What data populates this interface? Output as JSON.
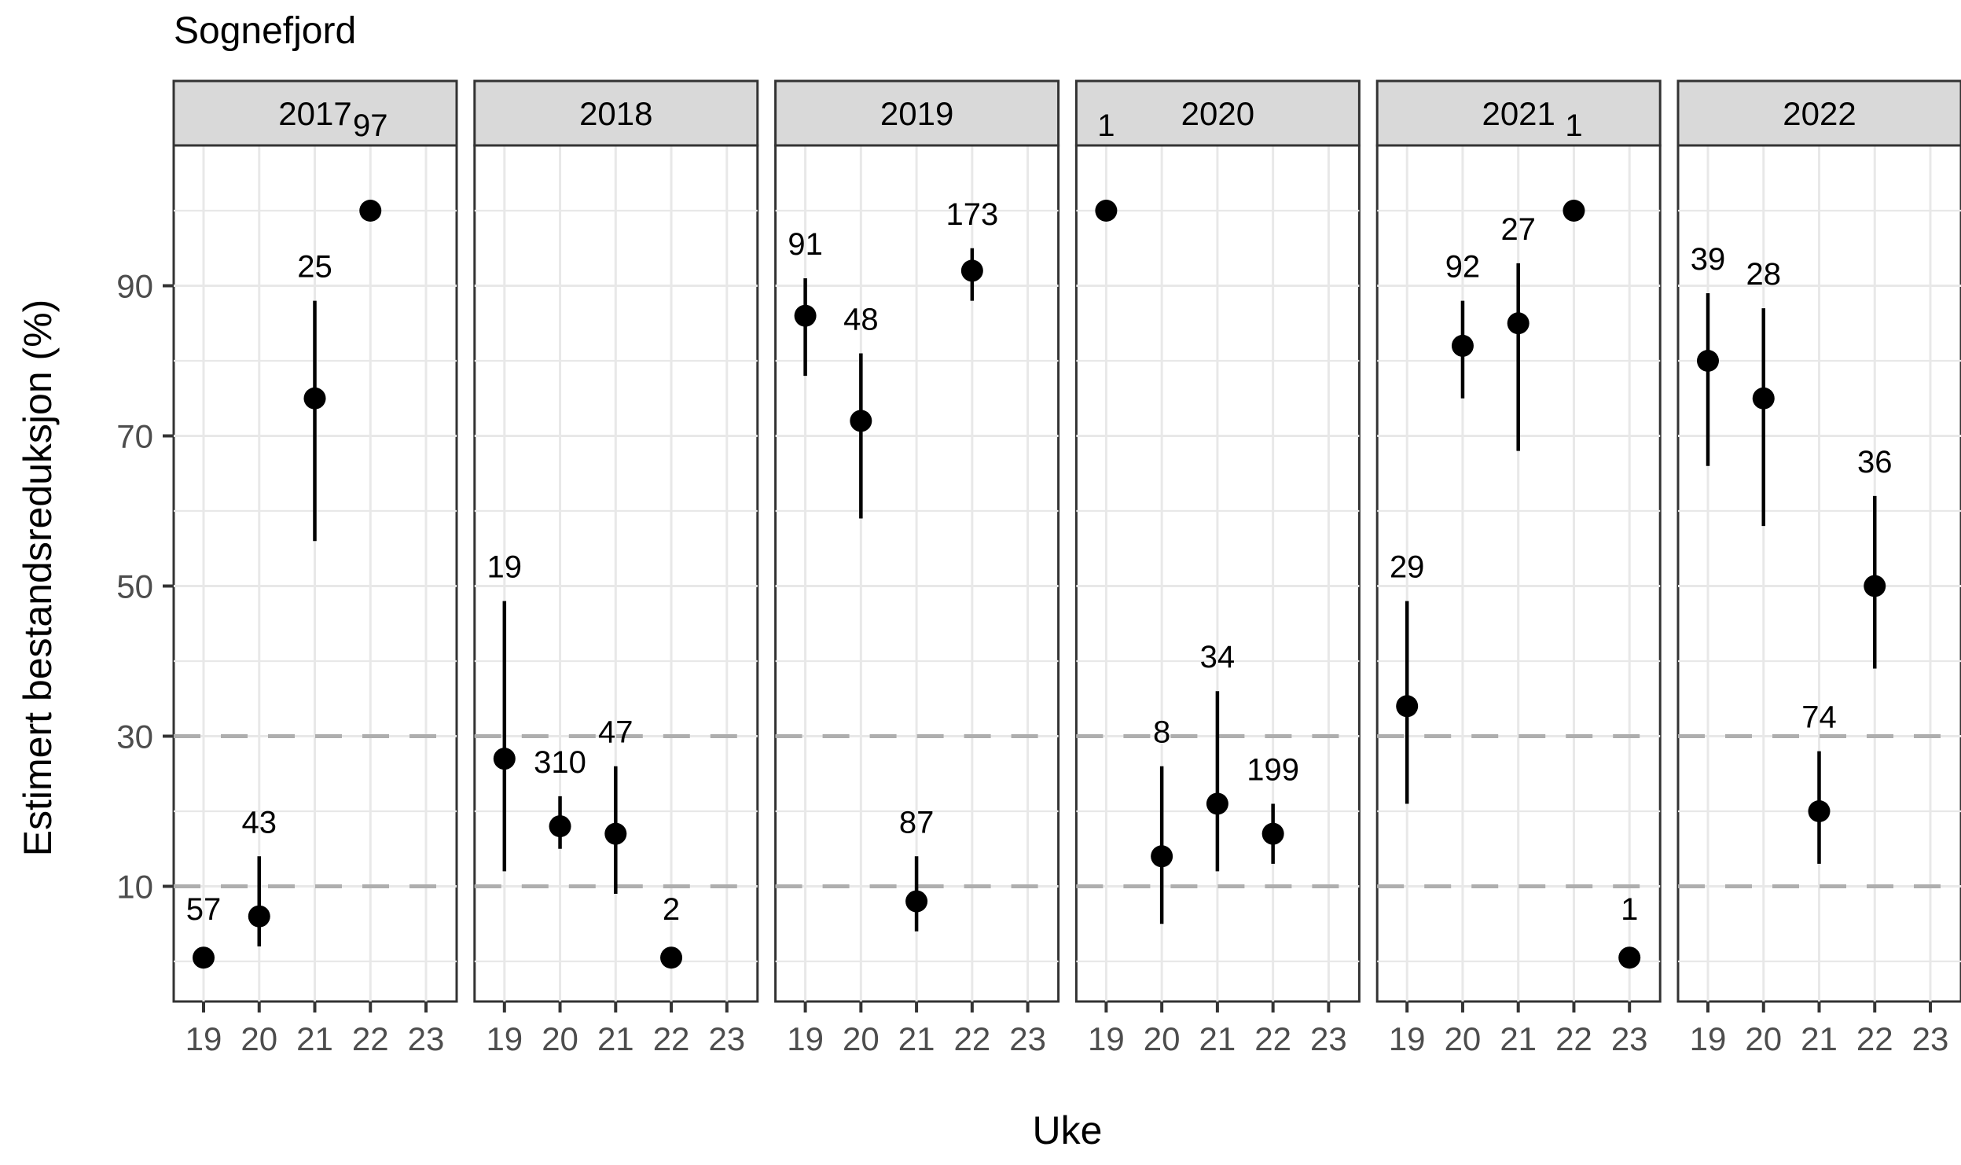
{
  "title": "Sognefjord",
  "x_axis_title": "Uke",
  "y_axis_title": "Estimert bestandsreduksjon (%)",
  "colors": {
    "strip_bg": "#D9D9D9",
    "strip_border": "#333333",
    "panel_border": "#333333",
    "panel_bg": "#FFFFFF",
    "grid": "#E8E8E8",
    "dashed_line": "#AEAEAE",
    "tick_label": "#4D4D4D",
    "tick_mark": "#333333",
    "point": "#000000",
    "label_text": "#000000"
  },
  "chart_data": {
    "type": "scatter",
    "title": "Sognefjord",
    "xlabel": "Uke",
    "ylabel": "Estimert bestandsreduksjon (%)",
    "x_ticks": [
      19,
      20,
      21,
      22,
      23
    ],
    "y_ticks": [
      90,
      70,
      50,
      30,
      10
    ],
    "y_minor_gridlines": [
      0,
      20,
      40,
      60,
      80,
      100
    ],
    "dashed_reference_lines": [
      30,
      10
    ],
    "ylim": [
      -5.5,
      108.7
    ],
    "legend": "none",
    "facets": [
      {
        "year": "2017",
        "points": [
          {
            "week": 19,
            "est": 0.5,
            "lo": null,
            "hi": null,
            "label": "57"
          },
          {
            "week": 20,
            "est": 6,
            "lo": 2,
            "hi": 14,
            "label": "43"
          },
          {
            "week": 21,
            "est": 75,
            "lo": 56,
            "hi": 88,
            "label": "25"
          },
          {
            "week": 22,
            "est": 100,
            "lo": null,
            "hi": null,
            "label": "97"
          }
        ]
      },
      {
        "year": "2018",
        "points": [
          {
            "week": 19,
            "est": 27,
            "lo": 12,
            "hi": 48,
            "label": "19"
          },
          {
            "week": 20,
            "est": 18,
            "lo": 15,
            "hi": 22,
            "label": "310"
          },
          {
            "week": 21,
            "est": 17,
            "lo": 9,
            "hi": 26,
            "label": "47"
          },
          {
            "week": 22,
            "est": 0.5,
            "lo": null,
            "hi": null,
            "label": "2"
          }
        ]
      },
      {
        "year": "2019",
        "points": [
          {
            "week": 19,
            "est": 86,
            "lo": 78,
            "hi": 91,
            "label": "91"
          },
          {
            "week": 20,
            "est": 72,
            "lo": 59,
            "hi": 81,
            "label": "48"
          },
          {
            "week": 21,
            "est": 8,
            "lo": 4,
            "hi": 14,
            "label": "87"
          },
          {
            "week": 22,
            "est": 92,
            "lo": 88,
            "hi": 95,
            "label": "173"
          }
        ]
      },
      {
        "year": "2020",
        "points": [
          {
            "week": 19,
            "est": 100,
            "lo": null,
            "hi": null,
            "label": "1"
          },
          {
            "week": 20,
            "est": 14,
            "lo": 5,
            "hi": 26,
            "label": "8"
          },
          {
            "week": 21,
            "est": 21,
            "lo": 12,
            "hi": 36,
            "label": "34"
          },
          {
            "week": 22,
            "est": 17,
            "lo": 13,
            "hi": 21,
            "label": "199"
          }
        ]
      },
      {
        "year": "2021",
        "points": [
          {
            "week": 19,
            "est": 34,
            "lo": 21,
            "hi": 48,
            "label": "29"
          },
          {
            "week": 20,
            "est": 82,
            "lo": 75,
            "hi": 88,
            "label": "92"
          },
          {
            "week": 21,
            "est": 85,
            "lo": 68,
            "hi": 93,
            "label": "27"
          },
          {
            "week": 22,
            "est": 100,
            "lo": null,
            "hi": null,
            "label": "1"
          },
          {
            "week": 23,
            "est": 0.5,
            "lo": null,
            "hi": null,
            "label": "1"
          }
        ]
      },
      {
        "year": "2022",
        "points": [
          {
            "week": 19,
            "est": 80,
            "lo": 66,
            "hi": 89,
            "label": "39"
          },
          {
            "week": 20,
            "est": 75,
            "lo": 58,
            "hi": 87,
            "label": "28"
          },
          {
            "week": 21,
            "est": 20,
            "lo": 13,
            "hi": 28,
            "label": "74"
          },
          {
            "week": 22,
            "est": 50,
            "lo": 39,
            "hi": 62,
            "label": "36"
          }
        ]
      }
    ]
  }
}
